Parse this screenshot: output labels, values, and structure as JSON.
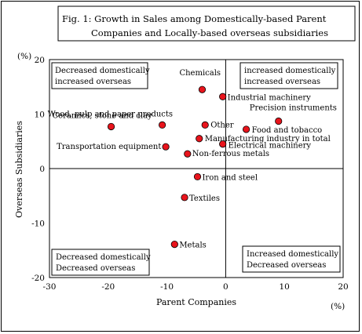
{
  "chart_data": {
    "type": "scatter",
    "title_line1": "Fig. 1: Growth in Sales among Domestically-based Parent",
    "title_line2": "Companies and Locally-based overseas subsidiaries",
    "xlabel": "Parent Companies",
    "ylabel": "Overseas Subsidiaries",
    "x_unit": "(%)",
    "y_unit": "(%)",
    "xlim": [
      -30,
      20
    ],
    "ylim": [
      -20,
      20
    ],
    "x_ticks": [
      "-30",
      "-20",
      "-10",
      "0",
      "10",
      "20"
    ],
    "y_ticks": [
      "20",
      "10",
      "0",
      "-10",
      "-20"
    ],
    "grid": false,
    "marker_color": "#e8141c",
    "quadrants": {
      "top_left": [
        "Decreased domestically",
        "increased overseas"
      ],
      "top_right": [
        "increased domestically",
        "increased overseas"
      ],
      "bottom_left": [
        "Decreased domestically",
        "Decreased overseas"
      ],
      "bottom_right": [
        "Increased domestically",
        "Decreased overseas"
      ]
    },
    "points": [
      {
        "label": "Chemicals",
        "x": -4.0,
        "y": 14.5
      },
      {
        "label": "Industrial machinery",
        "x": -0.5,
        "y": 13.2
      },
      {
        "label": "Wood, pulp and paper products",
        "x": -10.8,
        "y": 8.0
      },
      {
        "label": "Ceramics, stone and clay",
        "x": -19.5,
        "y": 7.7
      },
      {
        "label": "Other",
        "x": -3.5,
        "y": 8.0
      },
      {
        "label": "Precision instruments",
        "x": 9.0,
        "y": 8.7
      },
      {
        "label": "Food and tobacco",
        "x": 3.5,
        "y": 7.2
      },
      {
        "label": "Manufacturing industry in total",
        "x": -4.5,
        "y": 5.5
      },
      {
        "label": "Electrical machinery",
        "x": -0.5,
        "y": 4.5
      },
      {
        "label": "Transportation equipment",
        "x": -10.2,
        "y": 4.0
      },
      {
        "label": "Non-ferrous metals",
        "x": -6.5,
        "y": 2.7
      },
      {
        "label": "Iron and steel",
        "x": -4.8,
        "y": -1.5
      },
      {
        "label": "Textiles",
        "x": -7.0,
        "y": -5.3
      },
      {
        "label": "Metals",
        "x": -8.7,
        "y": -13.9
      }
    ]
  }
}
